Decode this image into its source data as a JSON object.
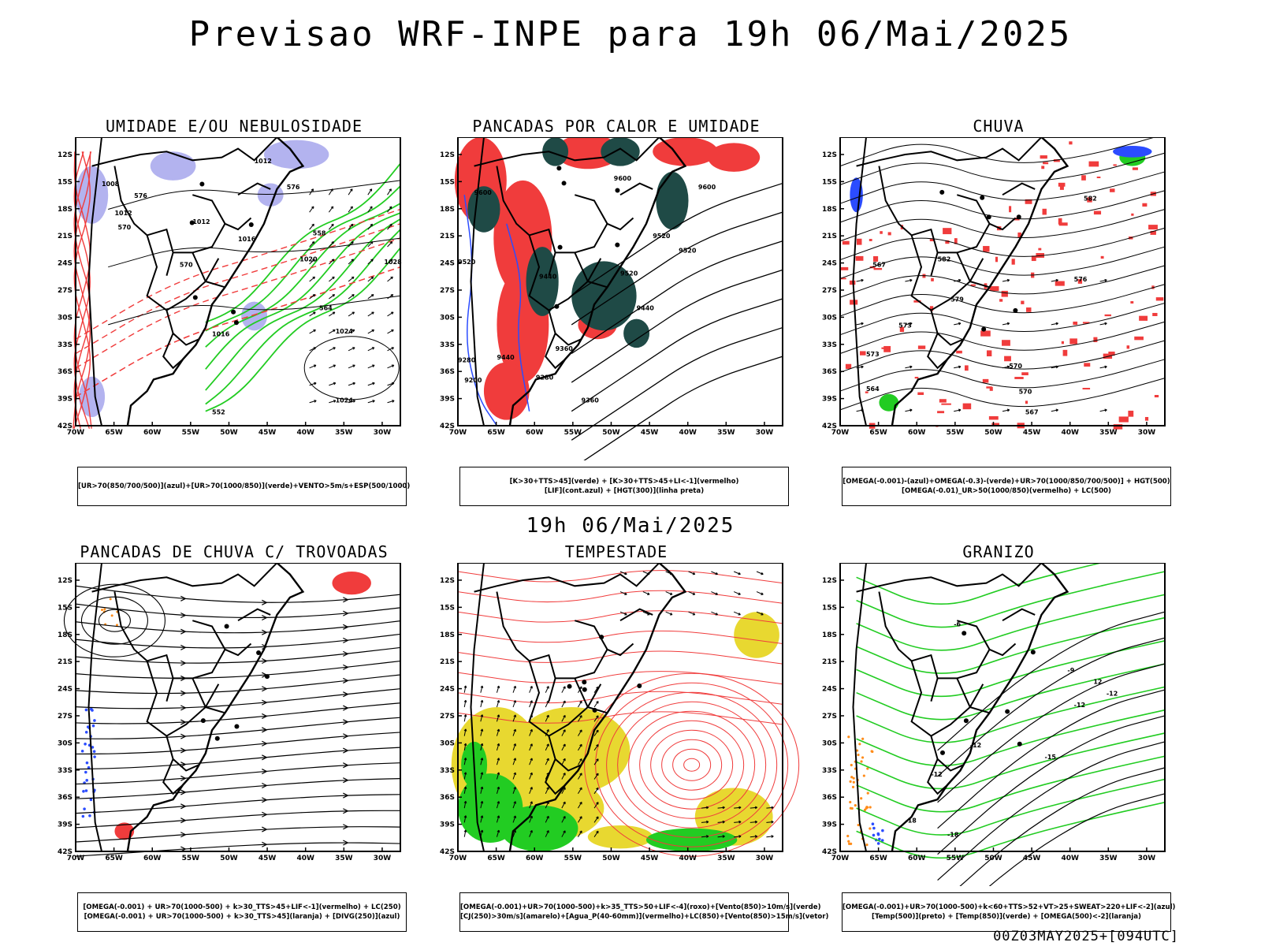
{
  "title": "Previsao WRF-INPE  para 19h 06/Mai/2025",
  "subtitle": "19h 06/Mai/2025",
  "footer": "00Z03MAY2025+[094UTC]",
  "axis": {
    "lat_labels": [
      "12S",
      "15S",
      "18S",
      "21S",
      "24S",
      "27S",
      "30S",
      "33S",
      "36S",
      "39S",
      "42S"
    ],
    "lon_labels": [
      "70W",
      "65W",
      "60W",
      "55W",
      "50W",
      "45W",
      "40W",
      "35W",
      "30W"
    ]
  },
  "colors": {
    "red": "#f03c3c",
    "green": "#22cc22",
    "blue": "#2b4cff",
    "lavender": "#b3b3ef",
    "darkteal": "#1f4a46",
    "yellow": "#e8d830",
    "orange": "#ff8c1a"
  },
  "panels": [
    {
      "id": "umidade",
      "title": "UMIDADE E/OU NEBULOSIDADE",
      "legend": [
        "[UR>70(850/700/500)](azul)+[UR>70(1000/850)](verde)+VENTO>5m/s+ESP(500/1000)"
      ],
      "labels": [
        "1012",
        "1008",
        "1012",
        "1012",
        "1016",
        "1020",
        "1024",
        "1028",
        "1016",
        "1024",
        "576",
        "570",
        "570",
        "564",
        "558",
        "552",
        "576"
      ]
    },
    {
      "id": "pancadas_calor",
      "title": "PANCADAS POR CALOR E UMIDADE",
      "legend": [
        "[K>30+TTS>45](verde) + [K>30+TTS>45+LI<-1](vermelho)",
        "[LIF](cont.azul) + [HGT(300)](linha preta)"
      ],
      "labels": [
        "9600",
        "9600",
        "9600",
        "9520",
        "9520",
        "9520",
        "9440",
        "9440",
        "9360",
        "9280",
        "9200",
        "9440",
        "9360",
        "9280",
        "9520"
      ]
    },
    {
      "id": "chuva",
      "title": "CHUVA",
      "legend": [
        "[OMEGA(-0.001)-(azul)+OMEGA(-0.3)-(verde)+UR>70(1000/850/700/500)] + HGT(500)",
        "[OMEGA(-0.01)_UR>50(1000/850)(vermelho) + LC(500)"
      ],
      "labels": [
        "582",
        "582",
        "579",
        "576",
        "573",
        "570",
        "567",
        "573",
        "570",
        "567",
        "564"
      ]
    },
    {
      "id": "trovoadas",
      "title": "PANCADAS DE CHUVA C/ TROVOADAS",
      "legend": [
        "[OMEGA(-0.001) + UR>70(1000-500) + k>30_TTS>45+LIF<-1](vermelho) + LC(250)",
        "[OMEGA(-0.001) + UR>70(1000-500) + k>30_TTS>45](laranja) + [DIVG(250)](azul)"
      ],
      "labels": []
    },
    {
      "id": "tempestade",
      "title": "TEMPESTADE",
      "legend": [
        "[OMEGA(-0.001)+UR>70(1000-500)+k>35_TTS>50+LIF<-4](roxo)+[Vento(850)>10m/s](verde)",
        "[CJ(250)>30m/s](amarelo)+[Agua_P(40-60mm)](vermelho)+LC(850)+[Vento(850)>15m/s](vetor)"
      ],
      "labels": []
    },
    {
      "id": "granizo",
      "title": "GRANIZO",
      "legend": [
        "[OMEGA(-0.001)+UR>70(1000-500)+k<60+TTS>52+VT>25+SWEAT>220+LIF<-2](azul)",
        "[Temp(500)](preto) + [Temp(850)](verde) + [OMEGA(500)<-2](laranja)"
      ],
      "labels": [
        "-6",
        "-9",
        "-12",
        "-12",
        "-12",
        "-15",
        "-18",
        "-12",
        "-18",
        "12"
      ]
    }
  ]
}
